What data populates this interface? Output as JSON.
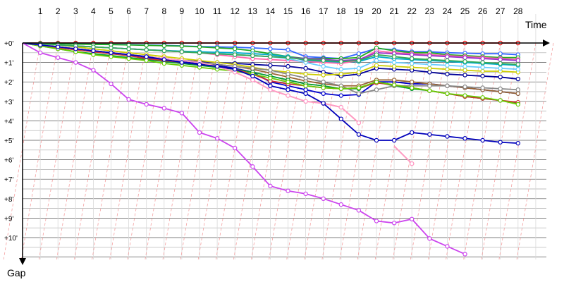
{
  "chart_data": {
    "type": "line",
    "xlabel": "Time",
    "ylabel": "Gap",
    "x_ticks": [
      "1",
      "2",
      "3",
      "4",
      "5",
      "6",
      "7",
      "8",
      "9",
      "10",
      "11",
      "12",
      "13",
      "14",
      "15",
      "16",
      "17",
      "18",
      "19",
      "20",
      "21",
      "22",
      "23",
      "24",
      "25",
      "26",
      "27",
      "28"
    ],
    "y_ticks": [
      "+0'",
      "+1'",
      "+2'",
      "+3'",
      "+4'",
      "+5'",
      "+6'",
      "+7'",
      "+8'",
      "+9'",
      "+10'"
    ],
    "xlim": [
      0,
      29
    ],
    "ylim": [
      0,
      11
    ],
    "grid": true,
    "legend": "none",
    "lap_line_color": "#f4a0a0",
    "series": [
      {
        "color": "#ee0000",
        "values": [
          0,
          0,
          0,
          0,
          0,
          0,
          0,
          0,
          0,
          0,
          0,
          0,
          0,
          0,
          0,
          0,
          0,
          0,
          0,
          0,
          0,
          0,
          0,
          0,
          0,
          0,
          0,
          0,
          0
        ]
      },
      {
        "color": "#3366ff",
        "values": [
          0,
          0.02,
          0.03,
          0.05,
          0.06,
          0.07,
          0.08,
          0.1,
          0.12,
          0.15,
          0.18,
          0.2,
          0.22,
          0.25,
          0.3,
          0.35,
          0.7,
          0.75,
          0.8,
          0.55,
          0.28,
          0.35,
          0.45,
          0.45,
          0.5,
          0.52,
          0.55,
          0.55,
          0.6
        ]
      },
      {
        "color": "#22aa22",
        "values": [
          0,
          0.02,
          0.04,
          0.06,
          0.07,
          0.08,
          0.1,
          0.12,
          0.14,
          0.16,
          0.2,
          0.25,
          0.3,
          0.4,
          0.55,
          0.7,
          0.8,
          0.8,
          0.8,
          0.75,
          0.25,
          0.4,
          0.5,
          0.5,
          0.6,
          0.65,
          0.7,
          0.75,
          0.75
        ]
      },
      {
        "color": "#00aacc",
        "values": [
          0,
          0.05,
          0.1,
          0.15,
          0.2,
          0.25,
          0.3,
          0.35,
          0.38,
          0.42,
          0.45,
          0.48,
          0.5,
          0.55,
          0.6,
          0.7,
          0.9,
          0.95,
          1.0,
          0.95,
          0.7,
          0.8,
          0.85,
          0.9,
          0.95,
          1.0,
          1.05,
          1.1,
          1.15
        ]
      },
      {
        "color": "#0000cc",
        "values": [
          0,
          0.1,
          0.2,
          0.3,
          0.4,
          0.5,
          0.6,
          0.75,
          0.85,
          0.95,
          1.05,
          1.15,
          1.3,
          1.5,
          2.0,
          2.2,
          2.4,
          2.6,
          2.7,
          2.65,
          2.0,
          2.0,
          2.1,
          2.1,
          2.2,
          2.3,
          2.4,
          2.5,
          2.6
        ]
      },
      {
        "color": "#000099",
        "values": [
          0,
          0.1,
          0.2,
          0.3,
          0.4,
          0.5,
          0.6,
          0.7,
          0.8,
          0.9,
          0.95,
          1.0,
          1.05,
          1.1,
          1.15,
          1.2,
          1.3,
          1.5,
          1.7,
          1.6,
          1.3,
          1.35,
          1.4,
          1.5,
          1.6,
          1.65,
          1.7,
          1.75,
          1.85
        ]
      },
      {
        "color": "#cccc00",
        "values": [
          0,
          0.05,
          0.1,
          0.2,
          0.3,
          0.4,
          0.5,
          0.6,
          0.7,
          0.8,
          0.9,
          1.0,
          1.1,
          1.25,
          1.4,
          1.5,
          1.6,
          1.65,
          1.6,
          1.5,
          1.15,
          1.2,
          1.25,
          1.3,
          1.35,
          1.4,
          1.45,
          1.45,
          1.5
        ]
      },
      {
        "color": "#996633",
        "values": [
          0,
          0.1,
          0.2,
          0.3,
          0.4,
          0.5,
          0.6,
          0.7,
          0.8,
          0.9,
          1.0,
          1.1,
          1.2,
          1.35,
          1.55,
          1.75,
          1.95,
          2.1,
          2.2,
          2.2,
          1.9,
          1.9,
          2.0,
          2.1,
          2.2,
          2.3,
          2.4,
          2.5,
          2.6
        ]
      },
      {
        "color": "#009933",
        "values": [
          0,
          0.15,
          0.3,
          0.45,
          0.55,
          0.65,
          0.75,
          0.85,
          0.95,
          1.05,
          1.15,
          1.25,
          1.35,
          1.5,
          1.7,
          1.9,
          2.1,
          2.2,
          2.35,
          2.35,
          2.0,
          2.2,
          2.35,
          2.45,
          2.6,
          2.75,
          2.85,
          2.95,
          3.1
        ]
      },
      {
        "color": "#888888",
        "values": [
          0,
          0.1,
          0.2,
          0.3,
          0.4,
          0.5,
          0.6,
          0.7,
          0.8,
          0.9,
          1.0,
          1.1,
          1.2,
          1.3,
          1.4,
          1.6,
          1.8,
          2.0,
          2.2,
          2.6,
          2.4,
          2.2,
          2.2,
          2.2,
          2.2,
          2.25,
          2.3,
          2.35,
          2.4
        ]
      },
      {
        "color": "#cc3333",
        "values": [
          0,
          0.1,
          0.25,
          0.35,
          0.45,
          0.55,
          0.65,
          0.8,
          0.9,
          1.0,
          1.1,
          1.2,
          1.35,
          1.6,
          1.95,
          2.1,
          2.2,
          2.3,
          2.35,
          2.3,
          2.05,
          2.15,
          2.3,
          2.45,
          2.6,
          2.75,
          2.85,
          2.95,
          3.05
        ]
      },
      {
        "color": "#66cc00",
        "values": [
          0,
          0.15,
          0.3,
          0.45,
          0.6,
          0.7,
          0.8,
          0.9,
          1.05,
          1.15,
          1.25,
          1.35,
          1.45,
          1.6,
          1.8,
          2.0,
          2.2,
          2.3,
          2.35,
          2.3,
          2.0,
          2.15,
          2.3,
          2.45,
          2.6,
          2.7,
          2.8,
          2.95,
          3.15
        ]
      },
      {
        "color": "#ff66aa",
        "values": [
          0,
          0.05,
          0.1,
          0.15,
          0.2,
          0.25,
          0.3,
          0.35,
          0.4,
          0.45,
          0.5,
          0.6,
          0.7,
          0.8,
          0.85,
          0.9,
          0.95,
          1.0,
          1.05,
          0.9,
          0.4,
          0.5,
          0.55,
          0.6,
          0.65,
          0.7,
          0.75,
          0.8,
          0.85
        ]
      },
      {
        "color": "#9933cc",
        "values": [
          0,
          0.05,
          0.1,
          0.15,
          0.2,
          0.25,
          0.3,
          0.35,
          0.4,
          0.45,
          0.5,
          0.55,
          0.6,
          0.65,
          0.7,
          0.75,
          0.8,
          0.85,
          0.9,
          0.85,
          0.5,
          0.55,
          0.6,
          0.65,
          0.7,
          0.75,
          0.8,
          0.85,
          0.9
        ]
      },
      {
        "color": "#66ccff",
        "values": [
          0,
          0.05,
          0.1,
          0.15,
          0.2,
          0.25,
          0.3,
          0.35,
          0.4,
          0.45,
          0.5,
          0.55,
          0.6,
          0.65,
          0.7,
          0.8,
          1.0,
          1.2,
          1.35,
          1.3,
          0.9,
          1.0,
          1.05,
          1.1,
          1.15,
          1.2,
          1.25,
          1.3,
          1.35
        ]
      },
      {
        "color": "#33aa55",
        "values": [
          0,
          0.05,
          0.1,
          0.15,
          0.2,
          0.25,
          0.3,
          0.35,
          0.4,
          0.45,
          0.5,
          0.55,
          0.6,
          0.65,
          0.7,
          0.75,
          0.85,
          0.9,
          0.95,
          0.9,
          0.6,
          0.7,
          0.8,
          0.85,
          0.9,
          0.95,
          1.0,
          1.05,
          1.1
        ]
      },
      {
        "color": "#ffaa33",
        "values": [
          0,
          0.1,
          0.2,
          0.3,
          0.4,
          0.5,
          0.6,
          0.7,
          0.8,
          0.9,
          1.0,
          1.2,
          1.5,
          1.9,
          2.4,
          2.7,
          3.0,
          3.1,
          3.3,
          4.1,
          null,
          5.3,
          6.2,
          null,
          null,
          null,
          null,
          null,
          null
        ]
      },
      {
        "color": "#ff99cc",
        "values": [
          0,
          0.1,
          0.2,
          0.3,
          0.4,
          0.5,
          0.6,
          0.7,
          0.8,
          0.9,
          1.0,
          1.2,
          1.5,
          1.9,
          2.4,
          2.7,
          3.0,
          3.1,
          3.3,
          4.1,
          null,
          5.3,
          6.2,
          null,
          null,
          null,
          null,
          null,
          null
        ]
      },
      {
        "color": "#0000bb",
        "values": [
          0,
          0.1,
          0.2,
          0.3,
          0.4,
          0.5,
          0.6,
          0.7,
          0.85,
          1.0,
          1.1,
          1.2,
          1.35,
          1.7,
          2.2,
          2.4,
          2.6,
          3.1,
          3.9,
          4.7,
          5.0,
          5.0,
          4.6,
          4.7,
          4.8,
          4.9,
          5.0,
          5.1,
          5.15
        ]
      },
      {
        "color": "#cc44ee",
        "values": [
          0,
          0.5,
          0.75,
          1.0,
          1.4,
          2.1,
          2.9,
          3.15,
          3.35,
          3.6,
          4.6,
          4.9,
          5.4,
          6.35,
          7.35,
          7.6,
          7.75,
          8.0,
          8.3,
          8.6,
          9.15,
          9.25,
          9.05,
          10.05,
          10.45,
          10.85,
          null,
          null,
          null
        ],
        "x_offset": [
          0,
          1,
          2,
          3,
          4,
          5,
          6,
          7,
          8,
          9,
          10,
          11,
          12,
          13,
          14,
          15,
          16,
          17,
          18,
          19,
          20,
          21,
          22,
          23,
          24,
          25
        ]
      }
    ]
  }
}
